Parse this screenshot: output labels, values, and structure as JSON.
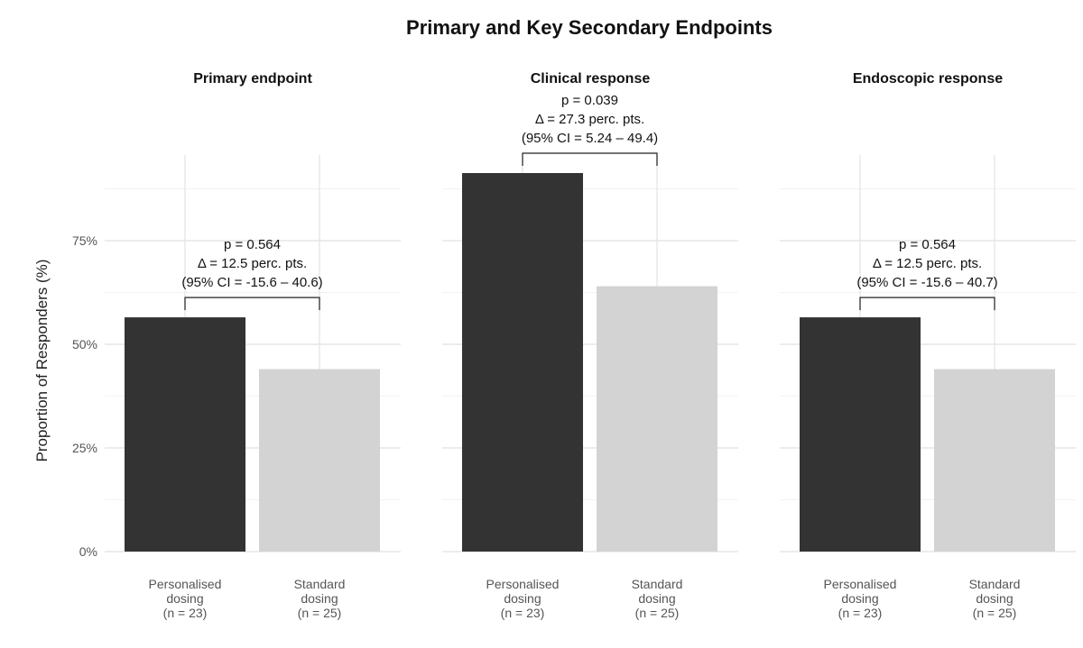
{
  "chart_data": {
    "type": "bar",
    "title": "Primary and Key Secondary Endpoints",
    "ylabel": "Proportion of Responders (%)",
    "ylim": [
      0,
      100
    ],
    "yticks": [
      "0%",
      "25%",
      "50%",
      "75%"
    ],
    "categories": [
      [
        "Personalised",
        "dosing",
        "(n = 23)"
      ],
      [
        "Standard",
        "dosing",
        "(n = 25)"
      ]
    ],
    "colors": [
      "#333333",
      "#d3d3d3"
    ],
    "grid": true,
    "panels": [
      {
        "title": "Primary endpoint",
        "values": [
          56.5,
          44.0
        ],
        "annotation": [
          "p = 0.564",
          "Δ = 12.5 perc. pts.",
          "(95% CI = -15.6 – 40.6)"
        ]
      },
      {
        "title": "Clinical response",
        "values": [
          91.3,
          64.0
        ],
        "annotation": [
          "p = 0.039",
          "Δ = 27.3 perc. pts.",
          "(95% CI = 5.24 – 49.4)"
        ]
      },
      {
        "title": "Endoscopic response",
        "values": [
          56.5,
          44.0
        ],
        "annotation": [
          "p = 0.564",
          "Δ = 12.5 perc. pts.",
          "(95% CI = -15.6 – 40.7)"
        ]
      }
    ]
  }
}
